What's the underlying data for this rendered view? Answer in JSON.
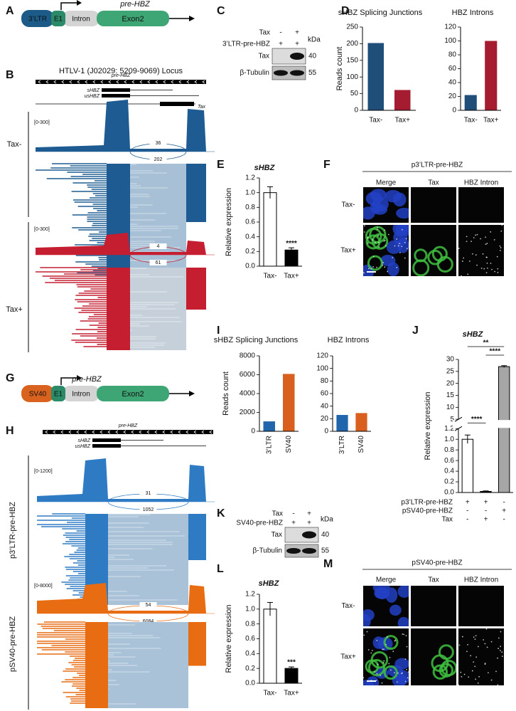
{
  "panel_letters": [
    "A",
    "B",
    "C",
    "D",
    "E",
    "F",
    "G",
    "H",
    "I",
    "J",
    "K",
    "L",
    "M"
  ],
  "construct_a": {
    "promoter": "3’LTR",
    "exon1": "E1",
    "intron": "Intron",
    "exon2": "Exon2",
    "transcript": "pre-HBZ"
  },
  "locus_b": {
    "title": "HTLV-1 (J02029: 5209-9069) Locus",
    "genes": {
      "pre": "pre-HBZ",
      "spliced": "sHBZ",
      "unspliced": "usHBZ",
      "tax": "Tax"
    },
    "tracks": [
      {
        "name": "Tax-",
        "range": "[0-300]",
        "junctions": [
          36,
          202
        ],
        "color": "#1d5b92",
        "light": "#a7c0d6"
      },
      {
        "name": "Tax+",
        "range": "[0-300]",
        "junctions": [
          4,
          61
        ],
        "color": "#c41e30",
        "light": "#c5d0db"
      }
    ]
  },
  "blot_c": {
    "rows": [
      {
        "label": "Tax",
        "signs": [
          "-",
          "+"
        ]
      },
      {
        "label": "3’LTR-pre-HBZ",
        "signs": [
          "+",
          "+"
        ]
      }
    ],
    "unit": "kDa",
    "bands": [
      {
        "name": "Tax",
        "size": 40
      },
      {
        "name": "β-Tubulin",
        "size": 55
      }
    ]
  },
  "imaging_f": {
    "title": "p3’LTR-pre-HBZ",
    "columns": [
      "Merge",
      "Tax",
      "HBZ Intron"
    ],
    "rows": [
      "Tax-",
      "Tax+"
    ]
  },
  "construct_g": {
    "promoter": "SV40",
    "exon1": "E1",
    "intron": "Intron",
    "exon2": "Exon2",
    "transcript": "pre-HBZ"
  },
  "locus_h": {
    "genes": {
      "pre": "pre-HBZ",
      "spliced": "sHBZ",
      "unspliced": "usHBZ"
    },
    "tracks": [
      {
        "name": "p3’LTR-pre-HBZ",
        "range": "[0-1200]",
        "junctions": [
          31,
          1052
        ],
        "color": "#2e7bc4",
        "light": "#a9c2d8"
      },
      {
        "name": "pSV40-pre-HBZ",
        "range": "[0-8000]",
        "junctions": [
          54,
          6084
        ],
        "color": "#e86c12",
        "light": "#a9c2d8"
      }
    ]
  },
  "blot_k": {
    "rows": [
      {
        "label": "Tax",
        "signs": [
          "-",
          "+"
        ]
      },
      {
        "label": "SV40-pre-HBZ",
        "signs": [
          "+",
          "+"
        ]
      }
    ],
    "unit": "kDa",
    "bands": [
      {
        "name": "Tax",
        "size": 40
      },
      {
        "name": "β-Tubulin",
        "size": 55
      }
    ]
  },
  "imaging_m": {
    "title": "pSV40-pre-HBZ",
    "columns": [
      "Merge",
      "Tax",
      "HBZ Intron"
    ],
    "rows": [
      "Tax-",
      "Tax+"
    ]
  },
  "chart_data": [
    {
      "type": "bar",
      "title": "sHBZ Splicing Junctions",
      "y_label": "Reads count",
      "categories": [
        "Tax-",
        "Tax+"
      ],
      "values": [
        202,
        61
      ],
      "colors": [
        "#1f4e79",
        "#a51c30"
      ],
      "ylim": [
        0,
        250
      ],
      "yticks": [
        0,
        50,
        100,
        150,
        200,
        250
      ]
    },
    {
      "type": "bar",
      "title": "HBZ Introns",
      "categories": [
        "Tax-",
        "Tax+"
      ],
      "values": [
        22,
        100
      ],
      "colors": [
        "#1f4e79",
        "#a51c30"
      ],
      "ylim": [
        0,
        120
      ],
      "yticks": [
        0,
        20,
        40,
        60,
        80,
        100,
        120
      ]
    },
    {
      "type": "bar",
      "title": "sHBZ",
      "y_label": "Relative expression",
      "categories": [
        "Tax-",
        "Tax+"
      ],
      "values": [
        1.0,
        0.22
      ],
      "errors": [
        0.08,
        0.03
      ],
      "colors": [
        "#ffffff",
        "#000000"
      ],
      "value_annotations": [
        null,
        "****"
      ],
      "ylim": [
        0,
        1.2
      ],
      "yticks": [
        {
          "value": 0,
          "label": "0.0"
        },
        0.2,
        0.4,
        0.6,
        0.8,
        {
          "value": 1,
          "label": "1.0"
        },
        1.2
      ]
    },
    {
      "type": "bar",
      "title": "sHBZ Splicing Junctions",
      "y_label": "Reads count",
      "categories": [
        "3’LTR",
        "SV40"
      ],
      "values": [
        1052,
        6084
      ],
      "colors": [
        "#2166ac",
        "#d95f1e"
      ],
      "ylim": [
        0,
        8000
      ],
      "yticks": [
        0,
        2000,
        4000,
        6000,
        8000
      ]
    },
    {
      "type": "bar",
      "title": "HBZ Introns",
      "categories": [
        "3’LTR",
        "SV40"
      ],
      "values": [
        26,
        29
      ],
      "colors": [
        "#2166ac",
        "#d95f1e"
      ],
      "ylim": [
        0,
        120
      ],
      "yticks": [
        0,
        20,
        40,
        60,
        80,
        100,
        120
      ]
    },
    {
      "type": "bar",
      "title": "sHBZ",
      "y_label": "Relative expression",
      "conditions": [
        {
          "label": "p3’LTR-pre-HBZ",
          "signs": [
            "+",
            "+",
            "-"
          ]
        },
        {
          "label": "pSV40-pre-HBZ",
          "signs": [
            "-",
            "-",
            "+"
          ]
        },
        {
          "label": "Tax",
          "signs": [
            "-",
            "+",
            "-"
          ]
        }
      ],
      "values": [
        1.0,
        0.02,
        27
      ],
      "errors": [
        0.08,
        0.01,
        0.4
      ],
      "colors": [
        "#ffffff",
        "#000000",
        "#a6a6a6"
      ],
      "ylim": [
        0,
        30
      ],
      "axis_break": [
        1.2,
        5
      ],
      "yticks": [
        {
          "value": 0,
          "label": "0.0"
        },
        0.2,
        0.4,
        0.6,
        0.8,
        {
          "value": 1,
          "label": "1.0"
        },
        1.2,
        5,
        10,
        15,
        20,
        25,
        30
      ],
      "significance": [
        {
          "text": "****",
          "pair": [
            0,
            1
          ]
        },
        {
          "text": "**",
          "pair": [
            0,
            2
          ]
        },
        {
          "text": "****",
          "pair": [
            1,
            2
          ]
        }
      ]
    },
    {
      "type": "bar",
      "title": "sHBZ",
      "y_label": "Relative expression",
      "categories": [
        "Tax-",
        "Tax+"
      ],
      "values": [
        1.0,
        0.2
      ],
      "errors": [
        0.09,
        0.02
      ],
      "colors": [
        "#ffffff",
        "#000000"
      ],
      "value_annotations": [
        null,
        "***"
      ],
      "ylim": [
        0,
        1.2
      ],
      "yticks": [
        {
          "value": 0,
          "label": "0.0"
        },
        0.2,
        0.4,
        0.6,
        0.8,
        {
          "value": 1,
          "label": "1.0"
        },
        1.2
      ]
    }
  ]
}
